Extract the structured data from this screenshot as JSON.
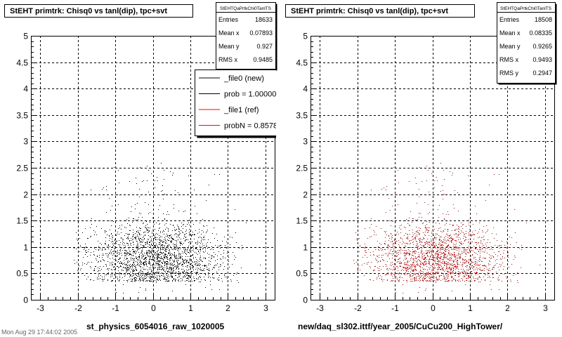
{
  "footer_text": "Mon Aug 29 17:44:02 2005",
  "chart_data": [
    {
      "type": "scatter",
      "title": "StEHT primtrk: Chisq0 vs tanl(dip), tpc+svt",
      "xlabel": "st_physics_6054016_raw_1020005",
      "ylabel": "",
      "xlim": [
        -3.25,
        3.25
      ],
      "ylim": [
        0,
        5
      ],
      "x_ticks": [
        -3,
        -2,
        -1,
        0,
        1,
        2,
        3
      ],
      "y_ticks": [
        0,
        0.5,
        1,
        1.5,
        2,
        2.5,
        3,
        3.5,
        4,
        4.5,
        5
      ],
      "grid": true,
      "marker_color": "#000000",
      "stats": {
        "name": "StEHTQaPrtkChi0TanlTS",
        "rows": [
          {
            "label": "Entries",
            "value": "18633"
          },
          {
            "label": "Mean x",
            "value": "0.07893"
          },
          {
            "label": "Mean y",
            "value": "0.927"
          },
          {
            "label": "RMS x",
            "value": "0.9485"
          }
        ]
      },
      "legend": {
        "placement": "top-right",
        "entries": [
          {
            "label": "_file0 (new)",
            "color": "#000000"
          },
          {
            "label": "prob = 1.000000",
            "color": "#000000"
          },
          {
            "label": "_file1 (ref)",
            "color": "#ff0000"
          },
          {
            "label": "probN = 0.857800",
            "color": "#ff0000"
          }
        ]
      },
      "distribution": {
        "entries": 18633,
        "mean_x": 0.07893,
        "mean_y": 0.927,
        "rms_x": 0.9485,
        "x_core": [
          -2.2,
          2.4
        ],
        "y_core": [
          0.3,
          1.5
        ]
      }
    },
    {
      "type": "scatter",
      "title": "StEHT primtrk: Chisq0 vs tanl(dip), tpc+svt",
      "xlabel": "new/daq_sl302.ittf/year_2005/CuCu200_HighTower/",
      "ylabel": "",
      "xlim": [
        -3.25,
        3.25
      ],
      "ylim": [
        0,
        5
      ],
      "x_ticks": [
        -3,
        -2,
        -1,
        0,
        1,
        2,
        3
      ],
      "y_ticks": [
        0,
        0.5,
        1,
        1.5,
        2,
        2.5,
        3,
        3.5,
        4,
        4.5,
        5
      ],
      "grid": true,
      "marker_color": "#ff0000",
      "stats": {
        "name": "StEHTQaPrtkChi0TanlTS",
        "rows": [
          {
            "label": "Entries",
            "value": "18508"
          },
          {
            "label": "Mean x",
            "value": "0.08335"
          },
          {
            "label": "Mean y",
            "value": "0.9265"
          },
          {
            "label": "RMS x",
            "value": "0.9493"
          },
          {
            "label": "RMS y",
            "value": "0.2947"
          }
        ]
      },
      "distribution": {
        "entries": 18508,
        "mean_x": 0.08335,
        "mean_y": 0.9265,
        "rms_x": 0.9493,
        "rms_y": 0.2947,
        "x_core": [
          -2.2,
          2.4
        ],
        "y_core": [
          0.3,
          1.5
        ]
      }
    }
  ]
}
